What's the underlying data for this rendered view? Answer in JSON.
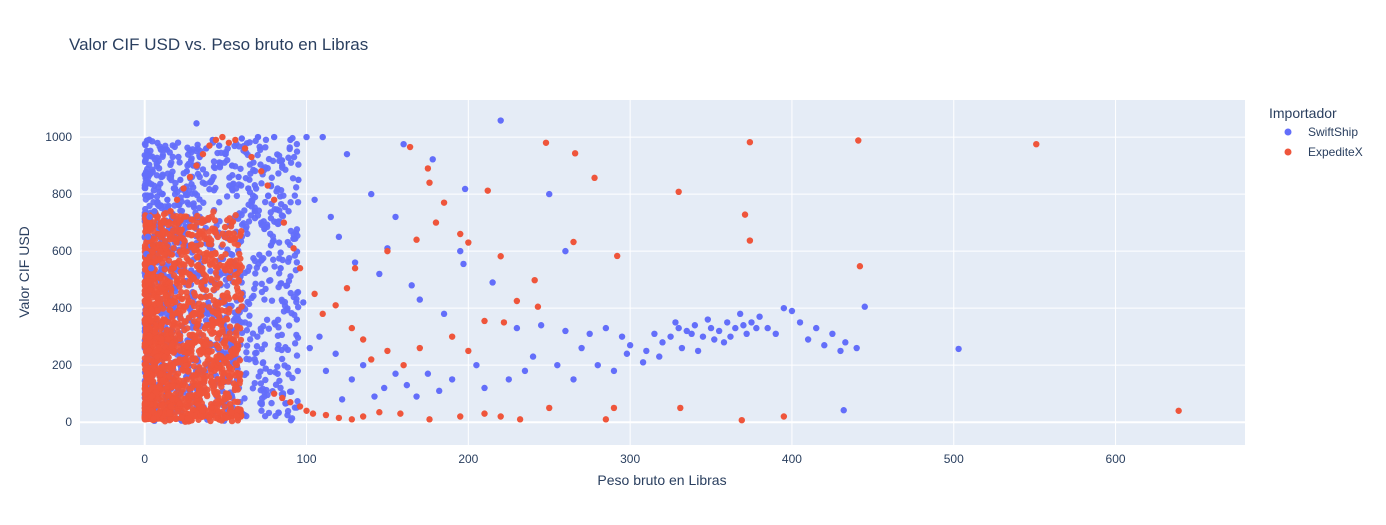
{
  "chart_data": {
    "type": "scatter",
    "title": "Valor CIF USD vs. Peso bruto en Libras",
    "xlabel": "Peso bruto en Libras",
    "ylabel": "Valor CIF USD",
    "xlim": [
      -40,
      680
    ],
    "ylim": [
      -80,
      1130
    ],
    "xticks": [
      0,
      100,
      200,
      300,
      400,
      500,
      600
    ],
    "yticks": [
      0,
      200,
      400,
      600,
      800,
      1000
    ],
    "grid": true,
    "legend": {
      "title": "Importador",
      "placement": "top-right"
    },
    "series": [
      {
        "name": "SwiftShip",
        "color": "#636efa",
        "points": [
          [
            220,
            1058
          ],
          [
            32,
            1048
          ],
          [
            250,
            800
          ],
          [
            198,
            818
          ],
          [
            178,
            922
          ],
          [
            160,
            975
          ],
          [
            195,
            600
          ],
          [
            197,
            555
          ],
          [
            260,
            600
          ],
          [
            215,
            490
          ],
          [
            150,
            610
          ],
          [
            155,
            720
          ],
          [
            140,
            800
          ],
          [
            125,
            940
          ],
          [
            110,
            1000
          ],
          [
            100,
            1000
          ],
          [
            90,
            990
          ],
          [
            80,
            1000
          ],
          [
            70,
            1000
          ],
          [
            60,
            995
          ],
          [
            85,
            900
          ],
          [
            95,
            850
          ],
          [
            105,
            780
          ],
          [
            115,
            720
          ],
          [
            120,
            650
          ],
          [
            130,
            560
          ],
          [
            145,
            520
          ],
          [
            165,
            480
          ],
          [
            170,
            430
          ],
          [
            185,
            380
          ],
          [
            230,
            330
          ],
          [
            245,
            340
          ],
          [
            260,
            320
          ],
          [
            275,
            310
          ],
          [
            285,
            330
          ],
          [
            295,
            300
          ],
          [
            300,
            270
          ],
          [
            310,
            250
          ],
          [
            315,
            310
          ],
          [
            320,
            280
          ],
          [
            325,
            300
          ],
          [
            330,
            330
          ],
          [
            335,
            320
          ],
          [
            340,
            340
          ],
          [
            345,
            300
          ],
          [
            350,
            330
          ],
          [
            355,
            320
          ],
          [
            360,
            350
          ],
          [
            362,
            300
          ],
          [
            365,
            330
          ],
          [
            368,
            380
          ],
          [
            370,
            340
          ],
          [
            372,
            310
          ],
          [
            375,
            350
          ],
          [
            378,
            330
          ],
          [
            380,
            370
          ],
          [
            385,
            330
          ],
          [
            390,
            310
          ],
          [
            395,
            400
          ],
          [
            400,
            390
          ],
          [
            405,
            350
          ],
          [
            410,
            290
          ],
          [
            415,
            330
          ],
          [
            420,
            270
          ],
          [
            425,
            310
          ],
          [
            430,
            250
          ],
          [
            433,
            280
          ],
          [
            440,
            260
          ],
          [
            445,
            405
          ],
          [
            432,
            42
          ],
          [
            503,
            257
          ],
          [
            348,
            360
          ],
          [
            352,
            290
          ],
          [
            358,
            280
          ],
          [
            342,
            250
          ],
          [
            338,
            310
          ],
          [
            332,
            260
          ],
          [
            328,
            350
          ],
          [
            318,
            230
          ],
          [
            308,
            210
          ],
          [
            298,
            240
          ],
          [
            290,
            180
          ],
          [
            280,
            200
          ],
          [
            270,
            260
          ],
          [
            265,
            150
          ],
          [
            255,
            200
          ],
          [
            240,
            230
          ],
          [
            235,
            180
          ],
          [
            225,
            150
          ],
          [
            210,
            120
          ],
          [
            205,
            200
          ],
          [
            190,
            150
          ],
          [
            182,
            110
          ],
          [
            175,
            170
          ],
          [
            168,
            90
          ],
          [
            162,
            130
          ],
          [
            155,
            170
          ],
          [
            148,
            120
          ],
          [
            142,
            90
          ],
          [
            135,
            200
          ],
          [
            128,
            150
          ],
          [
            122,
            80
          ],
          [
            118,
            240
          ],
          [
            112,
            180
          ],
          [
            108,
            300
          ],
          [
            102,
            260
          ],
          [
            98,
            420
          ],
          [
            94,
            360
          ],
          [
            88,
            480
          ],
          [
            84,
            540
          ],
          [
            78,
            620
          ],
          [
            74,
            680
          ],
          [
            68,
            740
          ],
          [
            64,
            820
          ],
          [
            58,
            860
          ],
          [
            54,
            900
          ],
          [
            50,
            940
          ],
          [
            46,
            970
          ],
          [
            42,
            990
          ],
          [
            38,
            960
          ],
          [
            34,
            930
          ],
          [
            30,
            900
          ],
          [
            26,
            880
          ],
          [
            22,
            850
          ],
          [
            18,
            820
          ],
          [
            14,
            780
          ],
          [
            10,
            760
          ],
          [
            6,
            740
          ],
          [
            3,
            720
          ],
          [
            2,
            650
          ],
          [
            1,
            590
          ],
          [
            4,
            540
          ]
        ]
      },
      {
        "name": "ExpediteX",
        "color": "#ef553b",
        "points": [
          [
            551,
            975
          ],
          [
            441,
            988
          ],
          [
            374,
            982
          ],
          [
            248,
            980
          ],
          [
            266,
            943
          ],
          [
            278,
            857
          ],
          [
            330,
            808
          ],
          [
            212,
            812
          ],
          [
            371,
            728
          ],
          [
            374,
            637
          ],
          [
            265,
            632
          ],
          [
            292,
            583
          ],
          [
            442,
            547
          ],
          [
            241,
            498
          ],
          [
            230,
            425
          ],
          [
            243,
            405
          ],
          [
            220,
            582
          ],
          [
            200,
            630
          ],
          [
            195,
            660
          ],
          [
            175,
            890
          ],
          [
            176,
            840
          ],
          [
            185,
            770
          ],
          [
            180,
            700
          ],
          [
            168,
            640
          ],
          [
            164,
            965
          ],
          [
            150,
            600
          ],
          [
            130,
            540
          ],
          [
            125,
            470
          ],
          [
            118,
            410
          ],
          [
            110,
            380
          ],
          [
            105,
            450
          ],
          [
            96,
            540
          ],
          [
            92,
            610
          ],
          [
            86,
            700
          ],
          [
            80,
            780
          ],
          [
            76,
            830
          ],
          [
            72,
            880
          ],
          [
            66,
            930
          ],
          [
            62,
            960
          ],
          [
            56,
            990
          ],
          [
            52,
            980
          ],
          [
            48,
            1000
          ],
          [
            44,
            990
          ],
          [
            40,
            970
          ],
          [
            36,
            940
          ],
          [
            32,
            900
          ],
          [
            28,
            860
          ],
          [
            24,
            820
          ],
          [
            20,
            780
          ],
          [
            16,
            740
          ],
          [
            12,
            700
          ],
          [
            8,
            660
          ],
          [
            5,
            620
          ],
          [
            3,
            580
          ],
          [
            2,
            520
          ],
          [
            1,
            460
          ],
          [
            639,
            40
          ],
          [
            395,
            20
          ],
          [
            369,
            7
          ],
          [
            331,
            50
          ],
          [
            290,
            50
          ],
          [
            285,
            10
          ],
          [
            250,
            50
          ],
          [
            232,
            10
          ],
          [
            220,
            20
          ],
          [
            210,
            30
          ],
          [
            195,
            20
          ],
          [
            176,
            10
          ],
          [
            158,
            30
          ],
          [
            145,
            35
          ],
          [
            135,
            20
          ],
          [
            128,
            10
          ],
          [
            120,
            15
          ],
          [
            112,
            25
          ],
          [
            104,
            30
          ],
          [
            100,
            40
          ],
          [
            96,
            55
          ],
          [
            90,
            70
          ],
          [
            85,
            85
          ],
          [
            80,
            100
          ],
          [
            222,
            350
          ],
          [
            210,
            355
          ],
          [
            200,
            250
          ],
          [
            190,
            300
          ],
          [
            170,
            260
          ],
          [
            160,
            200
          ],
          [
            150,
            250
          ],
          [
            140,
            220
          ],
          [
            135,
            290
          ],
          [
            128,
            330
          ]
        ]
      }
    ]
  }
}
